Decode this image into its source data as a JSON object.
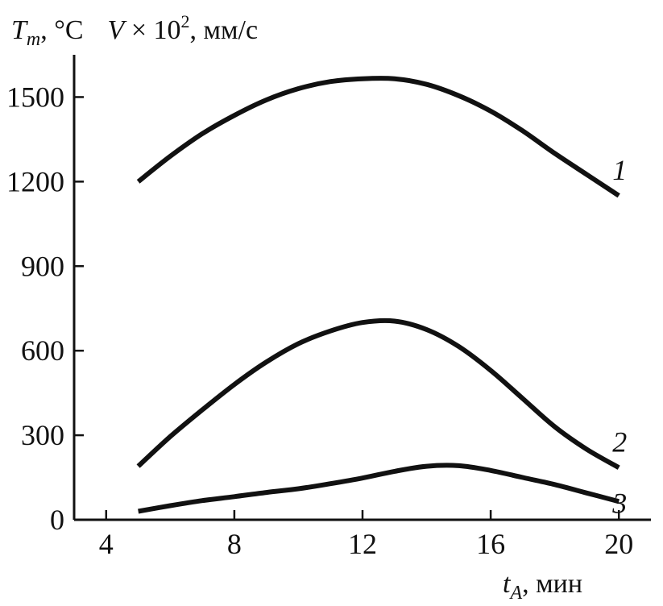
{
  "chart_data": {
    "type": "line",
    "ylabel": {
      "t_symbol": "T",
      "t_sub": "m",
      "t_unit": ", °C",
      "v_symbol": "V",
      "v_mult": " × 10",
      "v_exp": "2",
      "v_unit": ", мм/с"
    },
    "xlabel": {
      "symbol": "t",
      "sub": "A",
      "unit": ", мин"
    },
    "xlim": [
      3,
      21
    ],
    "ylim": [
      0,
      1650
    ],
    "xticks": [
      4,
      8,
      12,
      16,
      20
    ],
    "yticks": [
      0,
      300,
      600,
      900,
      1200,
      1500
    ],
    "grid": false,
    "series": [
      {
        "label": "1",
        "x": [
          5,
          6,
          7,
          8,
          9,
          10,
          11,
          12,
          13,
          14,
          15,
          16,
          17,
          18,
          19,
          20
        ],
        "y": [
          1200,
          1290,
          1370,
          1435,
          1490,
          1530,
          1555,
          1565,
          1565,
          1545,
          1505,
          1450,
          1380,
          1300,
          1225,
          1150
        ]
      },
      {
        "label": "2",
        "x": [
          5,
          6,
          7,
          8,
          9,
          10,
          11,
          12,
          13,
          14,
          15,
          16,
          17,
          18,
          19,
          20
        ],
        "y": [
          190,
          295,
          390,
          480,
          560,
          625,
          670,
          700,
          705,
          675,
          615,
          530,
          430,
          330,
          250,
          185
        ]
      },
      {
        "label": "3",
        "x": [
          5,
          6,
          7,
          8,
          9,
          10,
          11,
          12,
          13,
          14,
          15,
          16,
          17,
          18,
          19,
          20
        ],
        "y": [
          30,
          50,
          68,
          82,
          97,
          110,
          128,
          148,
          172,
          190,
          192,
          175,
          150,
          125,
          95,
          65
        ]
      }
    ]
  }
}
